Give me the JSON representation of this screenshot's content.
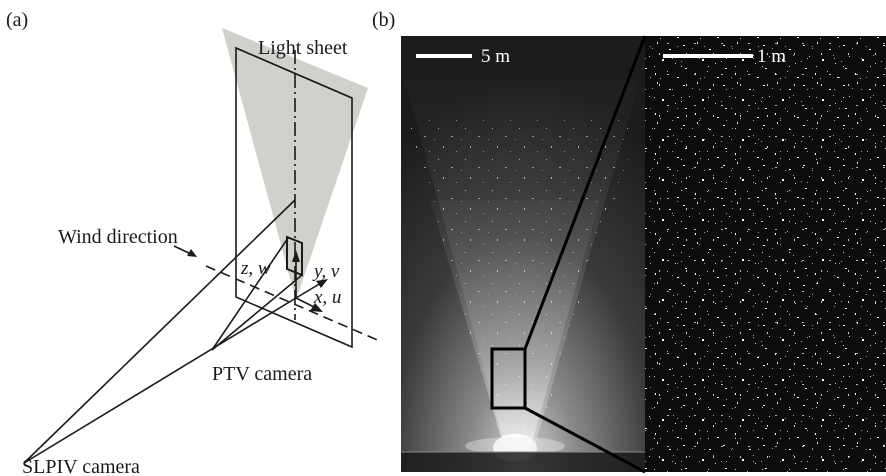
{
  "figure": {
    "panel_a": {
      "label": "(a)",
      "light_sheet": "Light sheet",
      "wind_direction": "Wind direction",
      "axis_z": "z, w",
      "axis_y": "y, v",
      "axis_x": "x, u",
      "ptv_camera": "PTV camera",
      "slpiv_camera": "SLPIV camera"
    },
    "panel_b": {
      "label": "(b)",
      "scale_left": "5 m",
      "scale_right": "1 m"
    }
  }
}
